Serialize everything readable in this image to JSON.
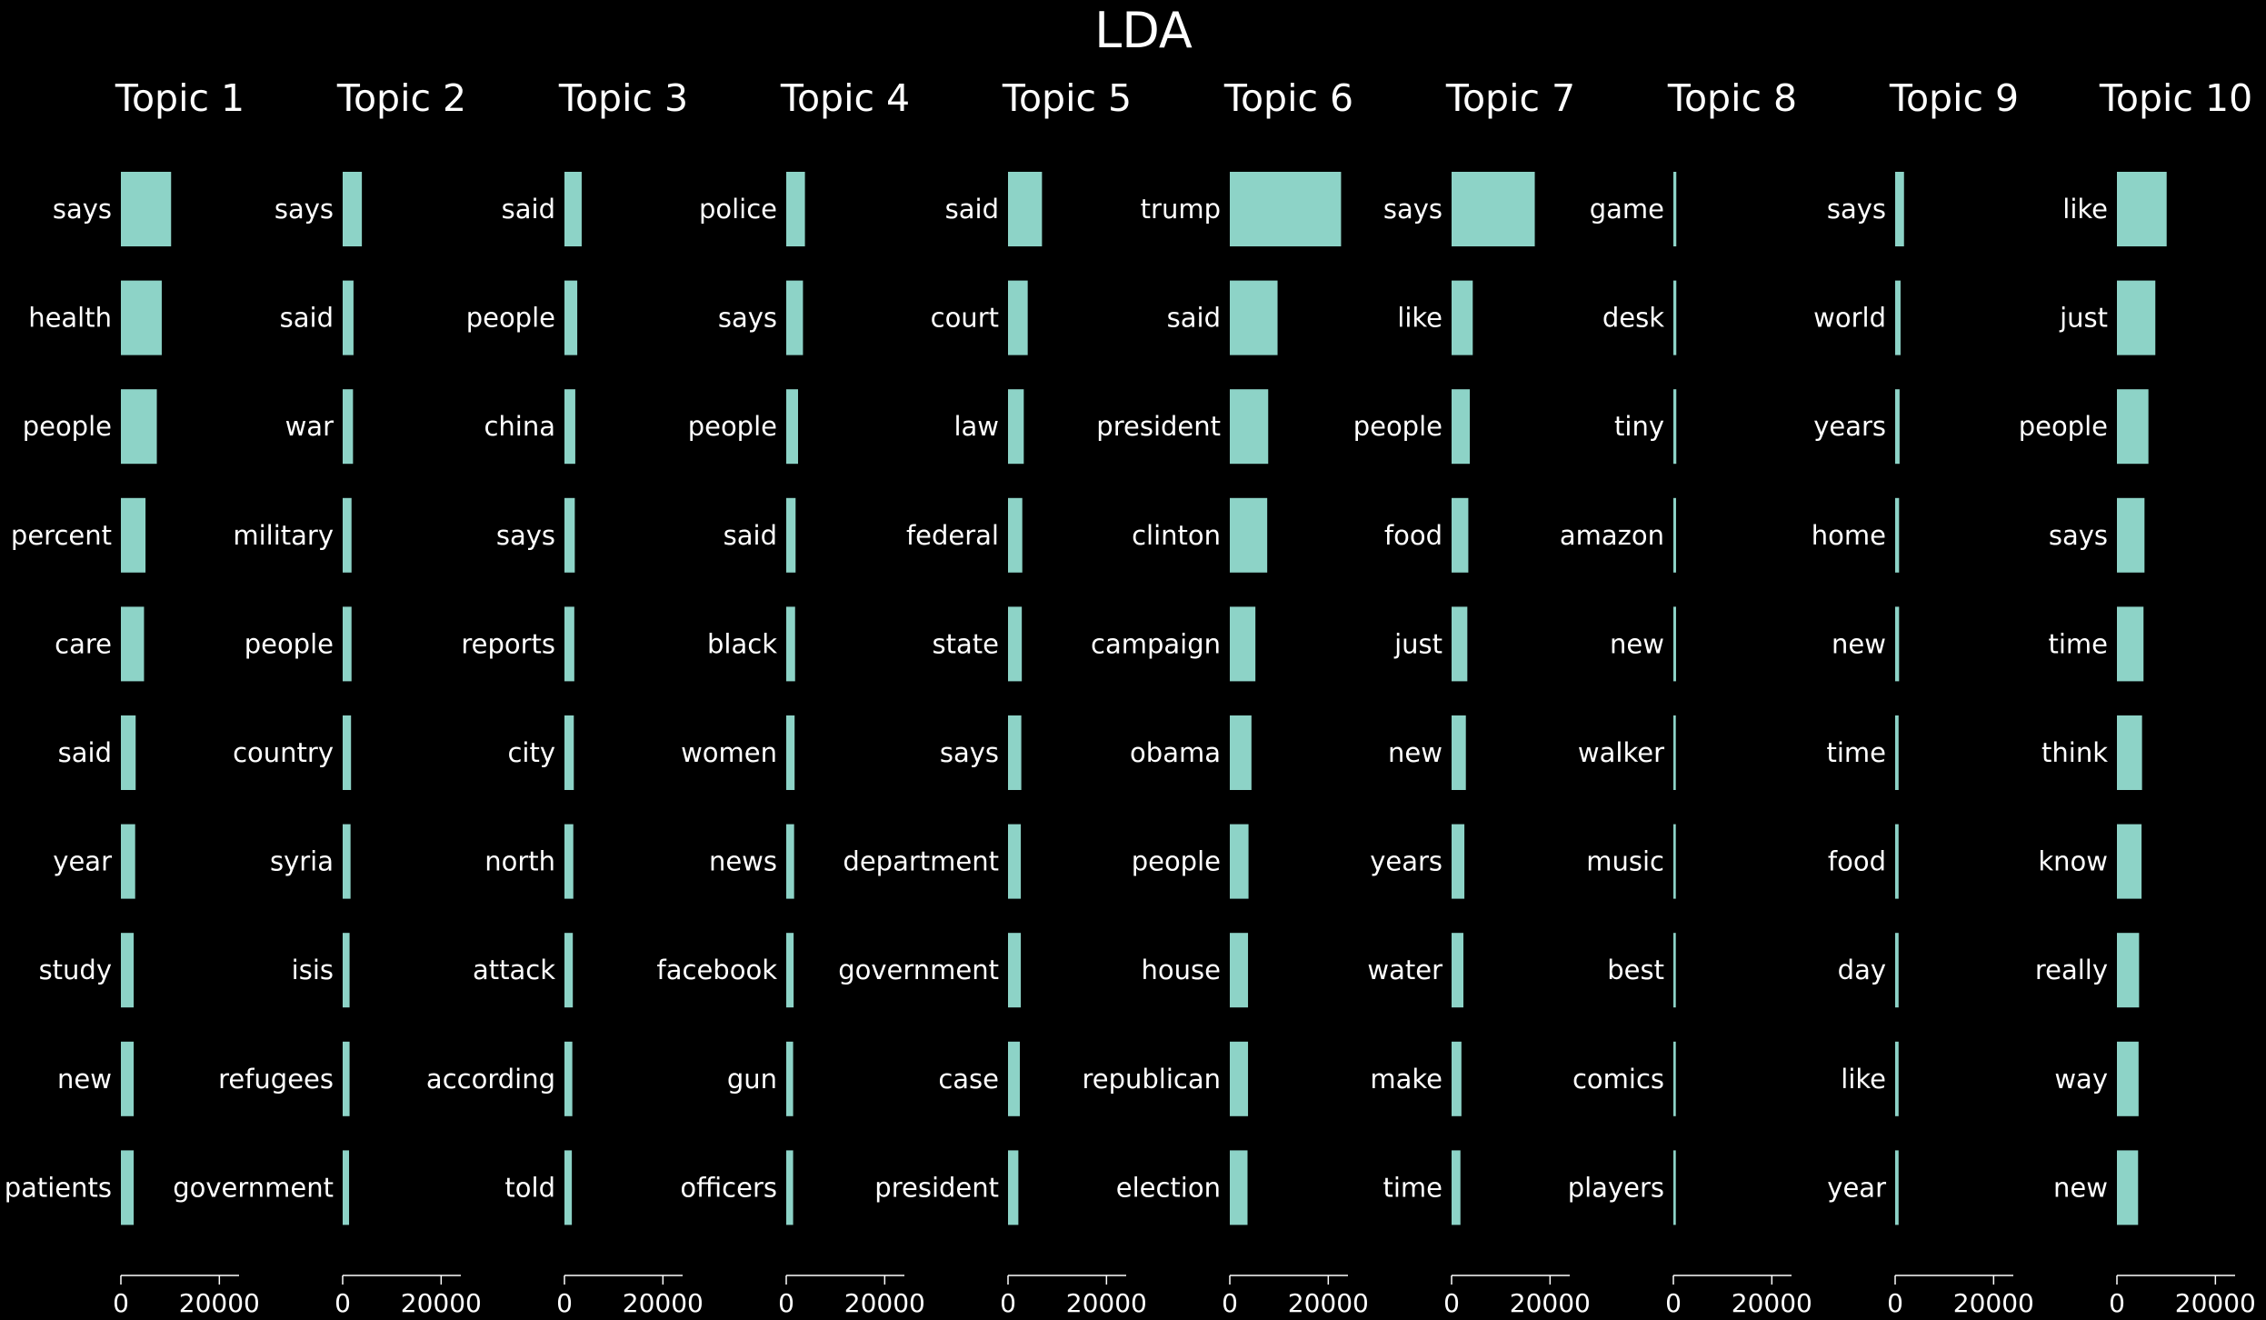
{
  "chart_data": {
    "type": "bar",
    "title": "LDA",
    "xlim": [
      0,
      24000
    ],
    "xticks": [
      0,
      20000
    ],
    "tick_labels": [
      "0",
      "20000"
    ],
    "colors": {
      "background": "#000000",
      "bar": "#8dd3c7",
      "text": "#ffffff"
    },
    "grid": false,
    "panels": [
      {
        "title": "Topic 1",
        "words": [
          "says",
          "health",
          "people",
          "percent",
          "care",
          "said",
          "year",
          "study",
          "new",
          "patients"
        ],
        "values": [
          10200,
          8300,
          7300,
          5000,
          4700,
          3000,
          2900,
          2600,
          2600,
          2600
        ]
      },
      {
        "title": "Topic 2",
        "words": [
          "says",
          "said",
          "war",
          "military",
          "people",
          "country",
          "syria",
          "isis",
          "refugees",
          "government"
        ],
        "values": [
          3900,
          2200,
          2100,
          1800,
          1800,
          1700,
          1600,
          1400,
          1400,
          1300
        ]
      },
      {
        "title": "Topic 3",
        "words": [
          "said",
          "people",
          "china",
          "says",
          "reports",
          "city",
          "north",
          "attack",
          "according",
          "told"
        ],
        "values": [
          3500,
          2600,
          2200,
          2100,
          2000,
          1900,
          1800,
          1700,
          1600,
          1500
        ]
      },
      {
        "title": "Topic 4",
        "words": [
          "police",
          "says",
          "people",
          "said",
          "black",
          "women",
          "news",
          "facebook",
          "gun",
          "officers"
        ],
        "values": [
          3800,
          3400,
          2400,
          1900,
          1800,
          1700,
          1600,
          1500,
          1400,
          1400
        ]
      },
      {
        "title": "Topic 5",
        "words": [
          "said",
          "court",
          "law",
          "federal",
          "state",
          "says",
          "department",
          "government",
          "case",
          "president"
        ],
        "values": [
          6900,
          4000,
          3200,
          2900,
          2800,
          2700,
          2600,
          2600,
          2400,
          2100
        ]
      },
      {
        "title": "Topic 6",
        "words": [
          "trump",
          "said",
          "president",
          "clinton",
          "campaign",
          "obama",
          "people",
          "house",
          "republican",
          "election"
        ],
        "values": [
          22600,
          9700,
          7800,
          7600,
          5200,
          4400,
          3800,
          3700,
          3700,
          3600
        ]
      },
      {
        "title": "Topic 7",
        "words": [
          "says",
          "like",
          "people",
          "food",
          "just",
          "new",
          "years",
          "water",
          "make",
          "time"
        ],
        "values": [
          16900,
          4300,
          3700,
          3400,
          3200,
          2900,
          2600,
          2400,
          2000,
          1800
        ]
      },
      {
        "title": "Topic 8",
        "words": [
          "game",
          "desk",
          "tiny",
          "amazon",
          "new",
          "walker",
          "music",
          "best",
          "comics",
          "players"
        ],
        "values": [
          600,
          600,
          600,
          550,
          550,
          500,
          500,
          500,
          500,
          500
        ]
      },
      {
        "title": "Topic 9",
        "words": [
          "says",
          "world",
          "years",
          "home",
          "new",
          "time",
          "food",
          "day",
          "like",
          "year"
        ],
        "values": [
          1800,
          1100,
          900,
          800,
          800,
          700,
          700,
          700,
          700,
          700
        ]
      },
      {
        "title": "Topic 10",
        "words": [
          "like",
          "just",
          "people",
          "says",
          "time",
          "think",
          "know",
          "really",
          "way",
          "new"
        ],
        "values": [
          10100,
          7800,
          6400,
          5600,
          5400,
          5100,
          5000,
          4500,
          4400,
          4300
        ]
      }
    ]
  }
}
